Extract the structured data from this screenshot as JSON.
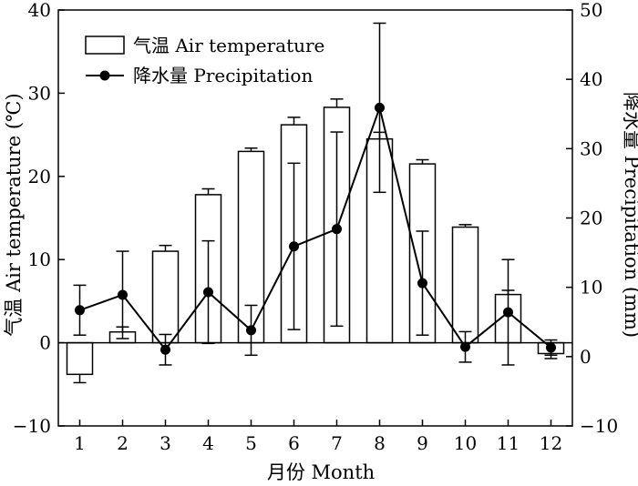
{
  "chart_data": {
    "type": "bar+line",
    "categories": [
      "1",
      "2",
      "3",
      "4",
      "5",
      "6",
      "7",
      "8",
      "9",
      "10",
      "11",
      "12"
    ],
    "xlabel": "月份 Month",
    "ylabel_left": "气温 Air temperature (℃)",
    "ylabel_right": "降水量 Precipitation (mm)",
    "ylim_left": [
      -10,
      40
    ],
    "ylim_right": [
      -10,
      50
    ],
    "yticks_left": [
      -10,
      0,
      10,
      20,
      30,
      40
    ],
    "yticks_right": [
      -10,
      0,
      10,
      20,
      30,
      40,
      50
    ],
    "grid": false,
    "legend_position": "top-left",
    "series": [
      {
        "name": "气温 Air temperature",
        "type": "bar",
        "axis": "left",
        "values": [
          -3.8,
          1.3,
          11.0,
          17.8,
          23.0,
          26.2,
          28.3,
          24.5,
          21.5,
          13.9,
          5.8,
          -1.3
        ],
        "error": [
          1.0,
          0.6,
          0.7,
          0.7,
          0.4,
          0.9,
          1.0,
          0.8,
          0.5,
          0.3,
          0.5,
          0.6
        ],
        "color": "#ffffff"
      },
      {
        "name": "降水量 Precipitation",
        "type": "line",
        "axis": "right",
        "values": [
          6.7,
          8.9,
          1.0,
          9.3,
          3.8,
          15.9,
          18.4,
          35.9,
          10.6,
          1.4,
          6.4,
          1.3
        ],
        "error": [
          3.6,
          6.3,
          2.2,
          7.4,
          3.6,
          12.0,
          14.0,
          12.2,
          7.5,
          2.2,
          7.6,
          1.1
        ],
        "color": "#000000"
      }
    ]
  }
}
